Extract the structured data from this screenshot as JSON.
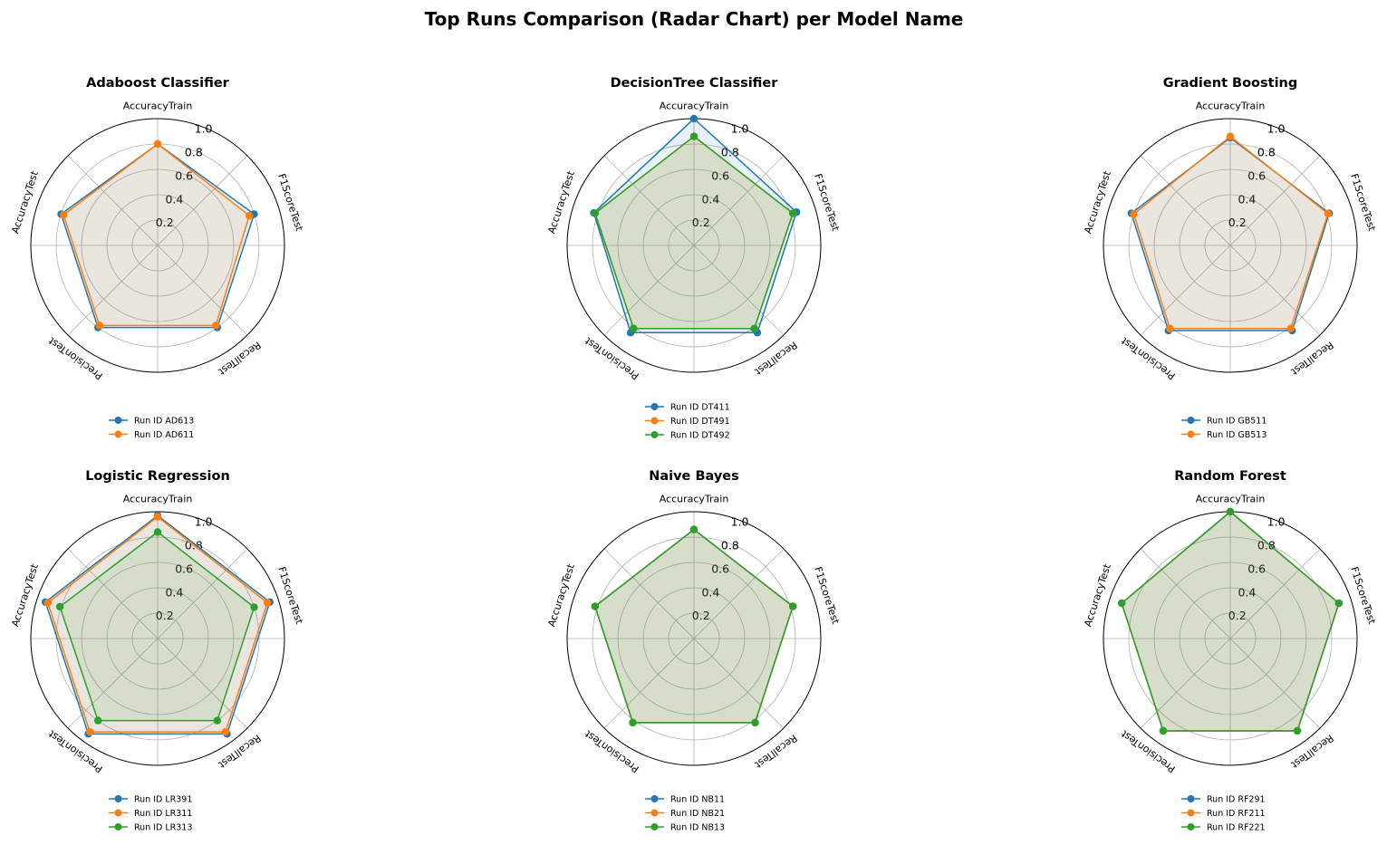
{
  "figure_title": "Top Runs Comparison (Radar Chart) per Model Name",
  "colors": [
    "#1f77b4",
    "#ff7f0e",
    "#2ca02c"
  ],
  "chart_data": [
    {
      "type": "radar",
      "title": "Adaboost Classifier",
      "axes": [
        "AccuracyTrain",
        "F1ScoreTest",
        "RecallTest",
        "PrecisionTest",
        "AccuracyTest"
      ],
      "rlim": [
        0,
        1.0
      ],
      "rticks": [
        "0.2",
        "0.4",
        "0.6",
        "0.8",
        "1.0"
      ],
      "series": [
        {
          "name": "Run ID AD613",
          "values": [
            0.8,
            0.8,
            0.8,
            0.8,
            0.8
          ]
        },
        {
          "name": "Run ID AD611",
          "values": [
            0.8,
            0.76,
            0.78,
            0.78,
            0.78
          ]
        }
      ]
    },
    {
      "type": "radar",
      "title": "DecisionTree Classifier",
      "axes": [
        "AccuracyTrain",
        "F1ScoreTest",
        "RecallTest",
        "PrecisionTest",
        "AccuracyTest"
      ],
      "rlim": [
        0,
        1.0
      ],
      "rticks": [
        "0.2",
        "0.4",
        "0.6",
        "0.8",
        "1.0"
      ],
      "series": [
        {
          "name": "Run ID DT411",
          "values": [
            1.0,
            0.85,
            0.85,
            0.85,
            0.83
          ]
        },
        {
          "name": "Run ID DT491",
          "values": [
            0.86,
            0.82,
            0.81,
            0.81,
            0.82
          ]
        },
        {
          "name": "Run ID DT492",
          "values": [
            0.86,
            0.82,
            0.81,
            0.81,
            0.82
          ]
        }
      ]
    },
    {
      "type": "radar",
      "title": "Gradient Boosting",
      "axes": [
        "AccuracyTrain",
        "F1ScoreTest",
        "RecallTest",
        "PrecisionTest",
        "AccuracyTest"
      ],
      "rlim": [
        0,
        1.0
      ],
      "rticks": [
        "0.2",
        "0.4",
        "0.6",
        "0.8",
        "1.0"
      ],
      "series": [
        {
          "name": "Run ID GB511",
          "values": [
            0.85,
            0.82,
            0.83,
            0.83,
            0.82
          ]
        },
        {
          "name": "Run ID GB513",
          "values": [
            0.86,
            0.81,
            0.81,
            0.81,
            0.8
          ]
        }
      ]
    },
    {
      "type": "radar",
      "title": "Logistic Regression",
      "axes": [
        "AccuracyTrain",
        "F1ScoreTest",
        "RecallTest",
        "PrecisionTest",
        "AccuracyTest"
      ],
      "rlim": [
        0,
        1.0
      ],
      "rticks": [
        "0.2",
        "0.4",
        "0.6",
        "0.8",
        "1.0"
      ],
      "series": [
        {
          "name": "Run ID LR391",
          "values": [
            0.97,
            0.93,
            0.93,
            0.93,
            0.93
          ]
        },
        {
          "name": "Run ID LR311",
          "values": [
            0.96,
            0.91,
            0.91,
            0.91,
            0.91
          ]
        },
        {
          "name": "Run ID LR313",
          "values": [
            0.84,
            0.8,
            0.8,
            0.8,
            0.81
          ]
        }
      ]
    },
    {
      "type": "radar",
      "title": "Naive Bayes",
      "axes": [
        "AccuracyTrain",
        "F1ScoreTest",
        "RecallTest",
        "PrecisionTest",
        "AccuracyTest"
      ],
      "rlim": [
        0,
        1.0
      ],
      "rticks": [
        "0.2",
        "0.4",
        "0.6",
        "0.8",
        "1.0"
      ],
      "series": [
        {
          "name": "Run ID NB11",
          "values": [
            0.86,
            0.82,
            0.82,
            0.82,
            0.82
          ]
        },
        {
          "name": "Run ID NB21",
          "values": [
            0.86,
            0.82,
            0.82,
            0.82,
            0.82
          ]
        },
        {
          "name": "Run ID NB13",
          "values": [
            0.86,
            0.82,
            0.82,
            0.82,
            0.82
          ]
        }
      ]
    },
    {
      "type": "radar",
      "title": "Random Forest",
      "axes": [
        "AccuracyTrain",
        "F1ScoreTest",
        "RecallTest",
        "PrecisionTest",
        "AccuracyTest"
      ],
      "rlim": [
        0,
        1.0
      ],
      "rticks": [
        "0.2",
        "0.4",
        "0.6",
        "0.8",
        "1.0"
      ],
      "series": [
        {
          "name": "Run ID RF291",
          "values": [
            1.0,
            0.9,
            0.9,
            0.9,
            0.9
          ]
        },
        {
          "name": "Run ID RF211",
          "values": [
            1.0,
            0.9,
            0.9,
            0.9,
            0.9
          ]
        },
        {
          "name": "Run ID RF221",
          "values": [
            1.0,
            0.9,
            0.9,
            0.9,
            0.9
          ]
        }
      ]
    }
  ]
}
